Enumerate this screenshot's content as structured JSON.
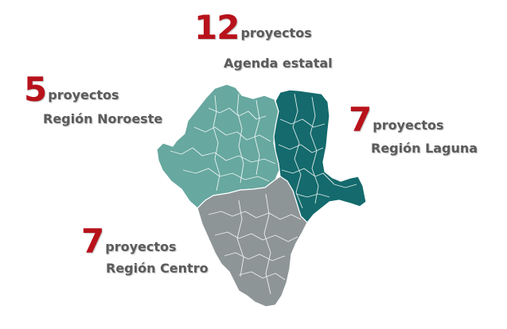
{
  "colors": {
    "count_red": "#b8121b",
    "noroeste": "#67a8a0",
    "laguna": "#146a6c",
    "centro": "#8e9597",
    "text_gray": "#5b5b5b"
  },
  "labels": {
    "estatal": {
      "count": "12",
      "unit": "proyectos",
      "name": "Agenda estatal"
    },
    "noroeste": {
      "count": "5",
      "unit": "proyectos",
      "name": "Región Noroeste"
    },
    "laguna": {
      "count": "7",
      "unit": "proyectos",
      "name": "Región Laguna"
    },
    "centro": {
      "count": "7",
      "unit": "proyectos",
      "name": "Región Centro"
    }
  }
}
